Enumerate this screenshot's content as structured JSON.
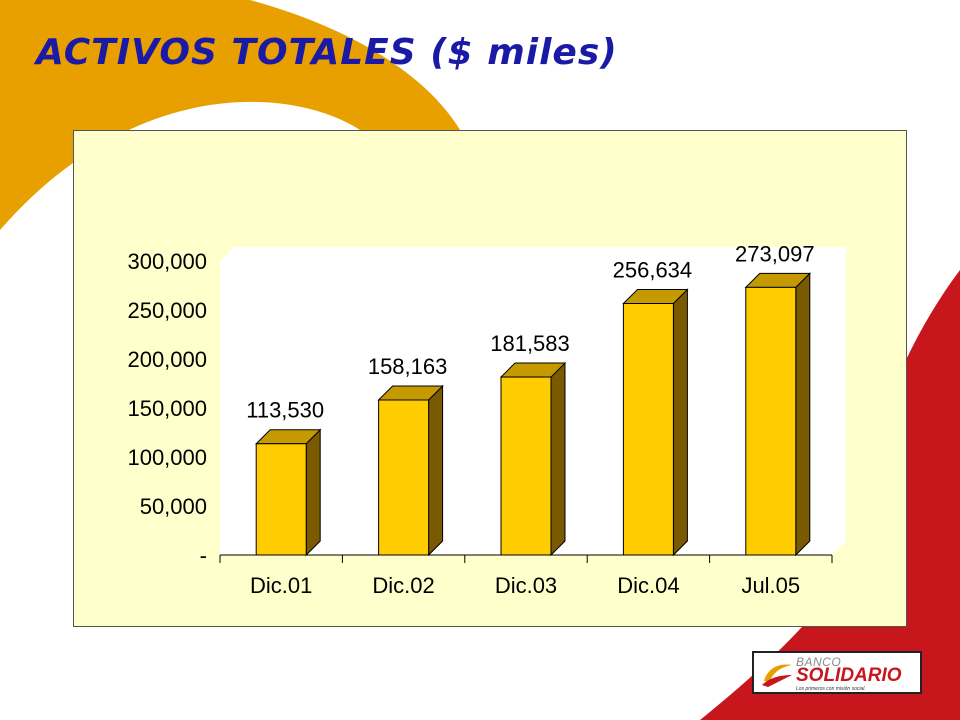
{
  "page": {
    "title": "ACTIVOS TOTALES ($ miles)"
  },
  "logo": {
    "line1": "BANCO",
    "line2": "SOLIDARIO",
    "tagline": "Los primeros con misión social."
  },
  "colors": {
    "title": "#1a1aa6",
    "swoosh_orange": "#e8a000",
    "swoosh_red": "#c8161d",
    "chart_bg": "#ffffcc",
    "bar_front": "#ffcc00",
    "bar_top": "#c49a00",
    "bar_side": "#7a5a00"
  },
  "chart_data": {
    "type": "bar",
    "categories": [
      "Dic.01",
      "Dic.02",
      "Dic.03",
      "Dic.04",
      "Jul.05"
    ],
    "values": [
      113530,
      158163,
      181583,
      256634,
      273097
    ],
    "data_labels": [
      "113,530",
      "158,163",
      "181,583",
      "256,634",
      "273,097"
    ],
    "y_tick_values": [
      0,
      50000,
      100000,
      150000,
      200000,
      250000,
      300000
    ],
    "y_tick_labels": [
      "-",
      "50,000",
      "100,000",
      "150,000",
      "200,000",
      "250,000",
      "300,000"
    ],
    "ylim": [
      0,
      300000
    ],
    "grid": false,
    "legend": "none",
    "style": "3d"
  }
}
